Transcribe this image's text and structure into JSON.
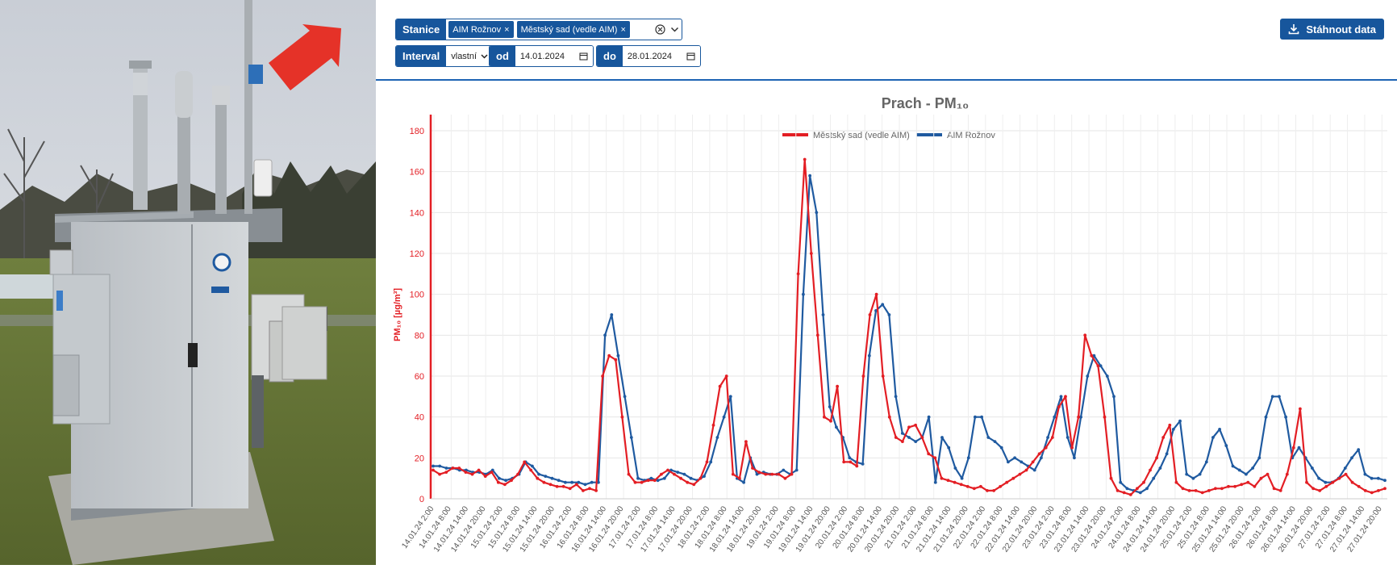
{
  "controls": {
    "stations_label": "Stanice",
    "station_chips": [
      "AIM Rožnov",
      "Městský sad (vedle AIM)"
    ],
    "chip_remove": "×",
    "interval_label": "Interval",
    "interval_value": "vlastní",
    "from_label": "od",
    "from_value": "14.01.2024",
    "to_label": "do",
    "to_value": "28.01.2024",
    "download_label": "Stáhnout data"
  },
  "colors": {
    "accent": "#17569c",
    "sad": "#e31e24",
    "aim": "#1f5aa0"
  },
  "chart_data": {
    "type": "line",
    "title": "Prach - PM₁₀",
    "ylabel": "PM₁₀ [µg/m³]",
    "xlabel": "",
    "ylim": [
      0,
      180
    ],
    "yticks": [
      0,
      20,
      40,
      60,
      80,
      100,
      120,
      140,
      160,
      180
    ],
    "grid": true,
    "legend_position": "top-center",
    "x_tick_labels": [
      "14.01.24 2:00",
      "14.01.24 8:00",
      "14.01.24 14:00",
      "14.01.24 20:00",
      "15.01.24 2:00",
      "15.01.24 8:00",
      "15.01.24 14:00",
      "15.01.24 20:00",
      "16.01.24 2:00",
      "16.01.24 8:00",
      "16.01.24 14:00",
      "16.01.24 20:00",
      "17.01.24 2:00",
      "17.01.24 8:00",
      "17.01.24 14:00",
      "17.01.24 20:00",
      "18.01.24 2:00",
      "18.01.24 8:00",
      "18.01.24 14:00",
      "18.01.24 20:00",
      "19.01.24 2:00",
      "19.01.24 8:00",
      "19.01.24 14:00",
      "19.01.24 20:00",
      "20.01.24 2:00",
      "20.01.24 8:00",
      "20.01.24 14:00",
      "20.01.24 20:00",
      "21.01.24 2:00",
      "21.01.24 8:00",
      "21.01.24 14:00",
      "21.01.24 20:00",
      "22.01.24 2:00",
      "22.01.24 8:00",
      "22.01.24 14:00",
      "22.01.24 20:00",
      "23.01.24 2:00",
      "23.01.24 8:00",
      "23.01.24 14:00",
      "23.01.24 20:00",
      "24.01.24 2:00",
      "24.01.24 8:00",
      "24.01.24 14:00",
      "24.01.24 20:00",
      "25.01.24 2:00",
      "25.01.24 8:00",
      "25.01.24 14:00",
      "25.01.24 20:00",
      "26.01.24 2:00",
      "26.01.24 8:00",
      "26.01.24 14:00",
      "26.01.24 20:00",
      "27.01.24 2:00",
      "27.01.24 8:00",
      "27.01.24 14:00",
      "27.01.24 20:00"
    ],
    "series": [
      {
        "name": "Městský sad (vedle AIM)",
        "color": "#e31e24",
        "values": [
          14,
          12,
          13,
          15,
          15,
          13,
          12,
          14,
          11,
          13,
          8,
          7,
          9,
          12,
          18,
          14,
          10,
          8,
          7,
          6,
          6,
          5,
          7,
          4,
          5,
          4,
          60,
          70,
          68,
          40,
          12,
          8,
          8,
          9,
          9,
          12,
          14,
          12,
          10,
          8,
          7,
          10,
          18,
          36,
          55,
          60,
          12,
          10,
          28,
          15,
          13,
          12,
          12,
          12,
          10,
          12,
          110,
          166,
          120,
          80,
          40,
          38,
          55,
          18,
          18,
          16,
          60,
          90,
          100,
          60,
          40,
          30,
          28,
          35,
          36,
          30,
          22,
          20,
          10,
          9,
          8,
          7,
          6,
          5,
          6,
          4,
          4,
          6,
          8,
          10,
          12,
          14,
          18,
          22,
          25,
          30,
          45,
          50,
          25,
          40,
          80,
          70,
          65,
          40,
          10,
          4,
          3,
          2,
          5,
          8,
          14,
          20,
          30,
          36,
          8,
          5,
          4,
          4,
          3,
          4,
          5,
          5,
          6,
          6,
          7,
          8,
          6,
          10,
          12,
          5,
          4,
          12,
          25,
          44,
          8,
          5,
          4,
          6,
          8,
          10,
          12,
          8,
          6,
          4,
          3,
          4,
          5
        ]
      },
      {
        "name": "AIM Rožnov",
        "color": "#1f5aa0",
        "values": [
          16,
          16,
          15,
          15,
          14,
          14,
          13,
          13,
          12,
          14,
          10,
          9,
          10,
          12,
          18,
          16,
          12,
          11,
          10,
          9,
          8,
          8,
          8,
          7,
          8,
          8,
          80,
          90,
          70,
          50,
          30,
          10,
          9,
          10,
          9,
          10,
          14,
          13,
          12,
          10,
          9,
          11,
          18,
          30,
          40,
          50,
          10,
          8,
          20,
          12,
          13,
          12,
          12,
          14,
          12,
          14,
          100,
          158,
          140,
          90,
          45,
          35,
          30,
          20,
          18,
          17,
          70,
          92,
          95,
          90,
          50,
          32,
          30,
          28,
          30,
          40,
          8,
          30,
          25,
          15,
          10,
          20,
          40,
          40,
          30,
          28,
          25,
          18,
          20,
          18,
          16,
          14,
          20,
          30,
          40,
          50,
          30,
          20,
          40,
          60,
          70,
          65,
          60,
          50,
          8,
          5,
          4,
          3,
          5,
          10,
          15,
          22,
          34,
          38,
          12,
          10,
          12,
          18,
          30,
          34,
          26,
          16,
          14,
          12,
          15,
          20,
          40,
          50,
          50,
          40,
          20,
          25,
          20,
          15,
          10,
          8,
          8,
          10,
          15,
          20,
          24,
          12,
          10,
          10,
          9
        ]
      }
    ]
  }
}
